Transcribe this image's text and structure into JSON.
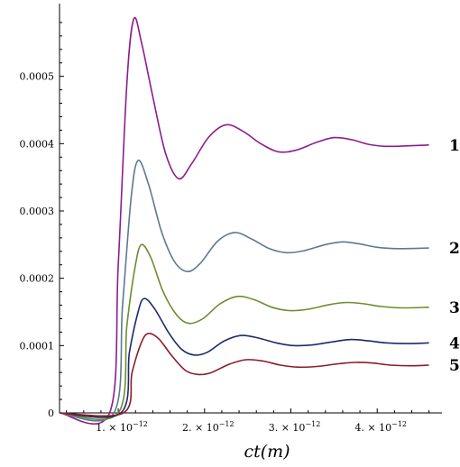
{
  "chart_data": {
    "type": "line",
    "xlabel": "ct(m)",
    "ylabel": "",
    "title": "",
    "xlim": [
      3.2e-13,
      4.75e-12
    ],
    "ylim": [
      0,
      0.0006
    ],
    "grid": false,
    "x_ticks": [
      {
        "value": 1e-12,
        "label": "1. × 10",
        "exp": "−12"
      },
      {
        "value": 2e-12,
        "label": "2. × 10",
        "exp": "−12"
      },
      {
        "value": 3e-12,
        "label": "3. × 10",
        "exp": "−12"
      },
      {
        "value": 4e-12,
        "label": "4. × 10",
        "exp": "−12"
      }
    ],
    "y_ticks": [
      {
        "value": 0,
        "label": "0"
      },
      {
        "value": 0.0001,
        "label": "0.0001"
      },
      {
        "value": 0.0002,
        "label": "0.0002"
      },
      {
        "value": 0.0003,
        "label": "0.0003"
      },
      {
        "value": 0.0004,
        "label": "0.0004"
      },
      {
        "value": 0.0005,
        "label": "0.0005"
      }
    ],
    "series": [
      {
        "label": "1",
        "color": "#8c1d8c",
        "points": [
          [
            3.2e-13,
            0
          ],
          [
            9e-13,
            0
          ],
          [
            1e-12,
            0.00022
          ],
          [
            1.1e-12,
            0.00049
          ],
          [
            1.18e-12,
            0.000585
          ],
          [
            1.27e-12,
            0.00055
          ],
          [
            1.4e-12,
            0.00047
          ],
          [
            1.55e-12,
            0.000385
          ],
          [
            1.7e-12,
            0.000348
          ],
          [
            1.85e-12,
            0.00037
          ],
          [
            2.05e-12,
            0.00041
          ],
          [
            2.25e-12,
            0.000428
          ],
          [
            2.45e-12,
            0.000418
          ],
          [
            2.65e-12,
            0.0004
          ],
          [
            2.85e-12,
            0.000388
          ],
          [
            3.05e-12,
            0.00039
          ],
          [
            3.3e-12,
            0.000402
          ],
          [
            3.5e-12,
            0.000409
          ],
          [
            3.7e-12,
            0.000406
          ],
          [
            3.9e-12,
            0.000399
          ],
          [
            4.1e-12,
            0.000396
          ],
          [
            4.4e-12,
            0.000397
          ],
          [
            4.6e-12,
            0.000398
          ]
        ]
      },
      {
        "label": "2",
        "color": "#5b7a91",
        "points": [
          [
            3.2e-13,
            0
          ],
          [
            9.5e-13,
            0
          ],
          [
            1.05e-12,
            0.00016
          ],
          [
            1.15e-12,
            0.00032
          ],
          [
            1.23e-12,
            0.000375
          ],
          [
            1.35e-12,
            0.00034
          ],
          [
            1.5e-12,
            0.00027
          ],
          [
            1.65e-12,
            0.000225
          ],
          [
            1.8e-12,
            0.00021
          ],
          [
            1.95e-12,
            0.000222
          ],
          [
            2.15e-12,
            0.000255
          ],
          [
            2.35e-12,
            0.000268
          ],
          [
            2.55e-12,
            0.000258
          ],
          [
            2.75e-12,
            0.000244
          ],
          [
            2.95e-12,
            0.000238
          ],
          [
            3.15e-12,
            0.000241
          ],
          [
            3.4e-12,
            0.00025
          ],
          [
            3.6e-12,
            0.000254
          ],
          [
            3.8e-12,
            0.000251
          ],
          [
            4e-12,
            0.000246
          ],
          [
            4.25e-12,
            0.000244
          ],
          [
            4.6e-12,
            0.000245
          ]
        ]
      },
      {
        "label": "3",
        "color": "#6b8e2e",
        "points": [
          [
            3.2e-13,
            0
          ],
          [
            1e-12,
            0
          ],
          [
            1.1e-12,
            0.00013
          ],
          [
            1.2e-12,
            0.00022
          ],
          [
            1.27e-12,
            0.00025
          ],
          [
            1.38e-12,
            0.00023
          ],
          [
            1.52e-12,
            0.00018
          ],
          [
            1.68e-12,
            0.000145
          ],
          [
            1.82e-12,
            0.000133
          ],
          [
            1.98e-12,
            0.00014
          ],
          [
            2.18e-12,
            0.000162
          ],
          [
            2.38e-12,
            0.000173
          ],
          [
            2.58e-12,
            0.000168
          ],
          [
            2.78e-12,
            0.000157
          ],
          [
            2.98e-12,
            0.000152
          ],
          [
            3.2e-12,
            0.000154
          ],
          [
            3.45e-12,
            0.000161
          ],
          [
            3.65e-12,
            0.000164
          ],
          [
            3.85e-12,
            0.000162
          ],
          [
            4.05e-12,
            0.000158
          ],
          [
            4.3e-12,
            0.000156
          ],
          [
            4.6e-12,
            0.000157
          ]
        ]
      },
      {
        "label": "4",
        "color": "#1d2a6b",
        "points": [
          [
            3.2e-13,
            0
          ],
          [
            1.03e-12,
            0
          ],
          [
            1.13e-12,
            9e-05
          ],
          [
            1.23e-12,
            0.00015
          ],
          [
            1.3e-12,
            0.00017
          ],
          [
            1.42e-12,
            0.000155
          ],
          [
            1.58e-12,
            0.00012
          ],
          [
            1.73e-12,
            9.5e-05
          ],
          [
            1.88e-12,
            8.6e-05
          ],
          [
            2.03e-12,
            9e-05
          ],
          [
            2.23e-12,
            0.000107
          ],
          [
            2.43e-12,
            0.000115
          ],
          [
            2.63e-12,
            0.000111
          ],
          [
            2.83e-12,
            0.000104
          ],
          [
            3.03e-12,
            0.0001
          ],
          [
            3.25e-12,
            0.000101
          ],
          [
            3.5e-12,
            0.000106
          ],
          [
            3.7e-12,
            0.000109
          ],
          [
            3.9e-12,
            0.000107
          ],
          [
            4.1e-12,
            0.000104
          ],
          [
            4.35e-12,
            0.000103
          ],
          [
            4.6e-12,
            0.000104
          ]
        ]
      },
      {
        "label": "5",
        "color": "#8b1c2a",
        "points": [
          [
            3.2e-13,
            0
          ],
          [
            1.06e-12,
            0
          ],
          [
            1.16e-12,
            6e-05
          ],
          [
            1.27e-12,
            0.000105
          ],
          [
            1.35e-12,
            0.000118
          ],
          [
            1.47e-12,
            0.00011
          ],
          [
            1.62e-12,
            8.5e-05
          ],
          [
            1.78e-12,
            6.3e-05
          ],
          [
            1.93e-12,
            5.7e-05
          ],
          [
            2.08e-12,
            6e-05
          ],
          [
            2.28e-12,
            7.2e-05
          ],
          [
            2.48e-12,
            7.9e-05
          ],
          [
            2.68e-12,
            7.7e-05
          ],
          [
            2.88e-12,
            7.1e-05
          ],
          [
            3.08e-12,
            6.8e-05
          ],
          [
            3.3e-12,
            6.9e-05
          ],
          [
            3.55e-12,
            7.3e-05
          ],
          [
            3.75e-12,
            7.5e-05
          ],
          [
            3.95e-12,
            7.4e-05
          ],
          [
            4.15e-12,
            7.1e-05
          ],
          [
            4.4e-12,
            7e-05
          ],
          [
            4.6e-12,
            7.1e-05
          ]
        ]
      }
    ]
  }
}
